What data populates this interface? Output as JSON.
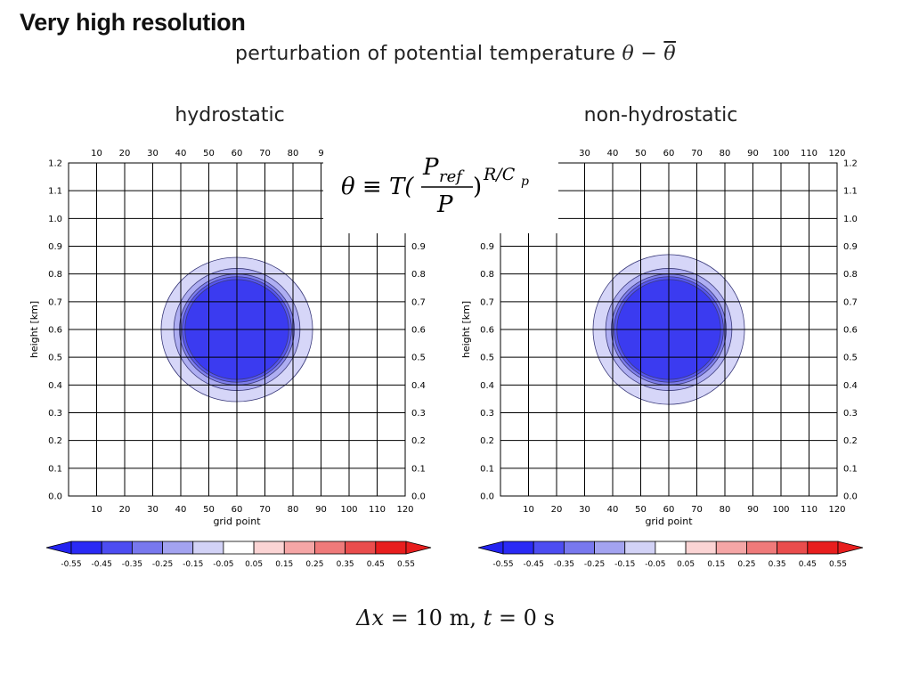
{
  "slide": {
    "title": "Very high resolution",
    "subtitle_prefix": "perturbation of potential temperature",
    "subtitle_theta": "θ",
    "subtitle_minus": " − ",
    "subtitle_theta_bar": "θ",
    "formula": {
      "lhs": "θ ≡ T(",
      "numerator": "P",
      "numerator_sub": "ref",
      "denominator": "P",
      "rhs": ")",
      "exponent": "R/C",
      "exponent_sub": "p"
    },
    "caption": {
      "delta_x": "Δx",
      "delta_x_value": " = 10 m,",
      "t": "t",
      "t_value": " = 0 s"
    }
  },
  "colors": {
    "grid": "#000000",
    "outline": "#3a3a7a",
    "contour_fills": [
      "#3b3bf0",
      "#5757ee",
      "#8080ee",
      "#aeaef2",
      "#d6d6f8"
    ],
    "colorbar": [
      "#2a2af5",
      "#4d4df2",
      "#7878ee",
      "#a3a3f0",
      "#d2d2f6",
      "#ffffff",
      "#fbd4d4",
      "#f5a6a6",
      "#ef7a7a",
      "#ea4d4d",
      "#e81e1e"
    ]
  },
  "chart_data": [
    {
      "type": "heatmap",
      "title": "hydrostatic",
      "xlabel": "grid point",
      "ylabel": "height [km]",
      "xlim": [
        0,
        120
      ],
      "ylim": [
        0,
        1.2
      ],
      "x_ticks": [
        10,
        20,
        30,
        40,
        50,
        60,
        70,
        80,
        90,
        100,
        110,
        120
      ],
      "y_ticks": [
        0.0,
        0.1,
        0.2,
        0.3,
        0.4,
        0.5,
        0.6,
        0.7,
        0.8,
        0.9,
        1.0,
        1.1,
        1.2
      ],
      "x_tick_labels": [
        "10",
        "20",
        "30",
        "40",
        "50",
        "60",
        "70",
        "80",
        "90",
        "100",
        "110",
        "120"
      ],
      "y_tick_labels": [
        "0.0",
        "0.1",
        "0.2",
        "0.3",
        "0.4",
        "0.5",
        "0.6",
        "0.7",
        "0.8",
        "0.9",
        "1.0",
        "1.1",
        "1.2"
      ],
      "top_x_tick_labels": [
        "10",
        "20",
        "30",
        "40",
        "50",
        "60",
        "70",
        "80",
        "9"
      ],
      "right_y_tick_labels": [
        "0.0",
        "0.1",
        "0.2",
        "0.3",
        "0.4",
        "0.5",
        "0.6",
        "0.7",
        "0.8",
        "0.9"
      ],
      "bubble": {
        "center_x": 60,
        "center_y": 0.6,
        "contours": [
          {
            "radius_x": 27,
            "radius_y": 0.26,
            "level": -0.05
          },
          {
            "radius_x": 22.5,
            "radius_y": 0.22,
            "level": -0.15
          },
          {
            "radius_x": 20.5,
            "radius_y": 0.2,
            "level": -0.25
          },
          {
            "radius_x": 19.5,
            "radius_y": 0.19,
            "level": -0.35
          },
          {
            "radius_x": 18.5,
            "radius_y": 0.18,
            "level": -0.45
          }
        ]
      },
      "colorbar": {
        "ticks": [
          "-0.55",
          "-0.45",
          "-0.35",
          "-0.25",
          "-0.15",
          "-0.05",
          "0.05",
          "0.15",
          "0.25",
          "0.35",
          "0.45",
          "0.55"
        ]
      }
    },
    {
      "type": "heatmap",
      "title": "non-hydrostatic",
      "xlabel": "grid point",
      "ylabel": "height [km]",
      "xlim": [
        0,
        120
      ],
      "ylim": [
        0,
        1.2
      ],
      "x_ticks": [
        10,
        20,
        30,
        40,
        50,
        60,
        70,
        80,
        90,
        100,
        110,
        120
      ],
      "y_ticks": [
        0.0,
        0.1,
        0.2,
        0.3,
        0.4,
        0.5,
        0.6,
        0.7,
        0.8,
        0.9,
        1.0,
        1.1,
        1.2
      ],
      "x_tick_labels": [
        "10",
        "20",
        "30",
        "40",
        "50",
        "60",
        "70",
        "80",
        "90",
        "100",
        "110",
        "120"
      ],
      "y_tick_labels": [
        "0.0",
        "0.1",
        "0.2",
        "0.3",
        "0.4",
        "0.5",
        "0.6",
        "0.7",
        "0.8",
        "0.9"
      ],
      "top_x_tick_labels": [
        ")",
        "30",
        "40",
        "50",
        "60",
        "70",
        "80",
        "90",
        "100",
        "110",
        "120"
      ],
      "right_y_tick_labels": [
        "0.0",
        "0.1",
        "0.2",
        "0.3",
        "0.4",
        "0.5",
        "0.6",
        "0.7",
        "0.8",
        "0.9",
        "1.0",
        "1.1",
        "1.2"
      ],
      "bubble": {
        "center_x": 60,
        "center_y": 0.6,
        "contours": [
          {
            "radius_x": 27,
            "radius_y": 0.27,
            "level": -0.05
          },
          {
            "radius_x": 22.5,
            "radius_y": 0.22,
            "level": -0.15
          },
          {
            "radius_x": 20.5,
            "radius_y": 0.2,
            "level": -0.25
          },
          {
            "radius_x": 19.5,
            "radius_y": 0.19,
            "level": -0.35
          },
          {
            "radius_x": 18.5,
            "radius_y": 0.18,
            "level": -0.45
          }
        ]
      },
      "colorbar": {
        "ticks": [
          "-0.55",
          "-0.45",
          "-0.35",
          "-0.25",
          "-0.15",
          "-0.05",
          "0.05",
          "0.15",
          "0.25",
          "0.35",
          "0.45",
          "0.55"
        ]
      }
    }
  ]
}
